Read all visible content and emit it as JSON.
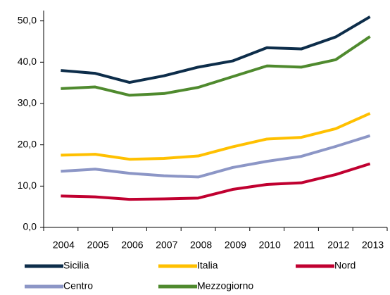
{
  "chart_data": {
    "type": "line",
    "categories": [
      "2004",
      "2005",
      "2006",
      "2007",
      "2008",
      "2009",
      "2010",
      "2011",
      "2012",
      "2013"
    ],
    "series": [
      {
        "name": "Sicilia",
        "color": "#0d2d4a",
        "values": [
          38.0,
          37.3,
          35.1,
          36.7,
          38.8,
          40.3,
          43.5,
          43.2,
          46.1,
          51.0
        ]
      },
      {
        "name": "Italia",
        "color": "#ffc000",
        "values": [
          17.5,
          17.7,
          16.5,
          16.7,
          17.3,
          19.5,
          21.4,
          21.8,
          23.9,
          27.6
        ]
      },
      {
        "name": "Nord",
        "color": "#c00030",
        "values": [
          7.6,
          7.4,
          6.8,
          6.9,
          7.1,
          9.2,
          10.4,
          10.8,
          12.8,
          15.4
        ]
      },
      {
        "name": "Centro",
        "color": "#8c96c6",
        "values": [
          13.6,
          14.1,
          13.1,
          12.5,
          12.2,
          14.5,
          16.0,
          17.2,
          19.6,
          22.2
        ]
      },
      {
        "name": "Mezzogiorno",
        "color": "#4f8a2e",
        "values": [
          33.6,
          34.0,
          32.0,
          32.4,
          33.9,
          36.5,
          39.1,
          38.8,
          40.6,
          46.2
        ]
      }
    ],
    "ylim": [
      0,
      52.5
    ],
    "yticks": [
      {
        "value": 0,
        "label": "0,0"
      },
      {
        "value": 10,
        "label": "10,0"
      },
      {
        "value": 20,
        "label": "20,0"
      },
      {
        "value": 30,
        "label": "30,0"
      },
      {
        "value": 40,
        "label": "40,0"
      },
      {
        "value": 50,
        "label": "50,0"
      }
    ],
    "grid": false
  }
}
